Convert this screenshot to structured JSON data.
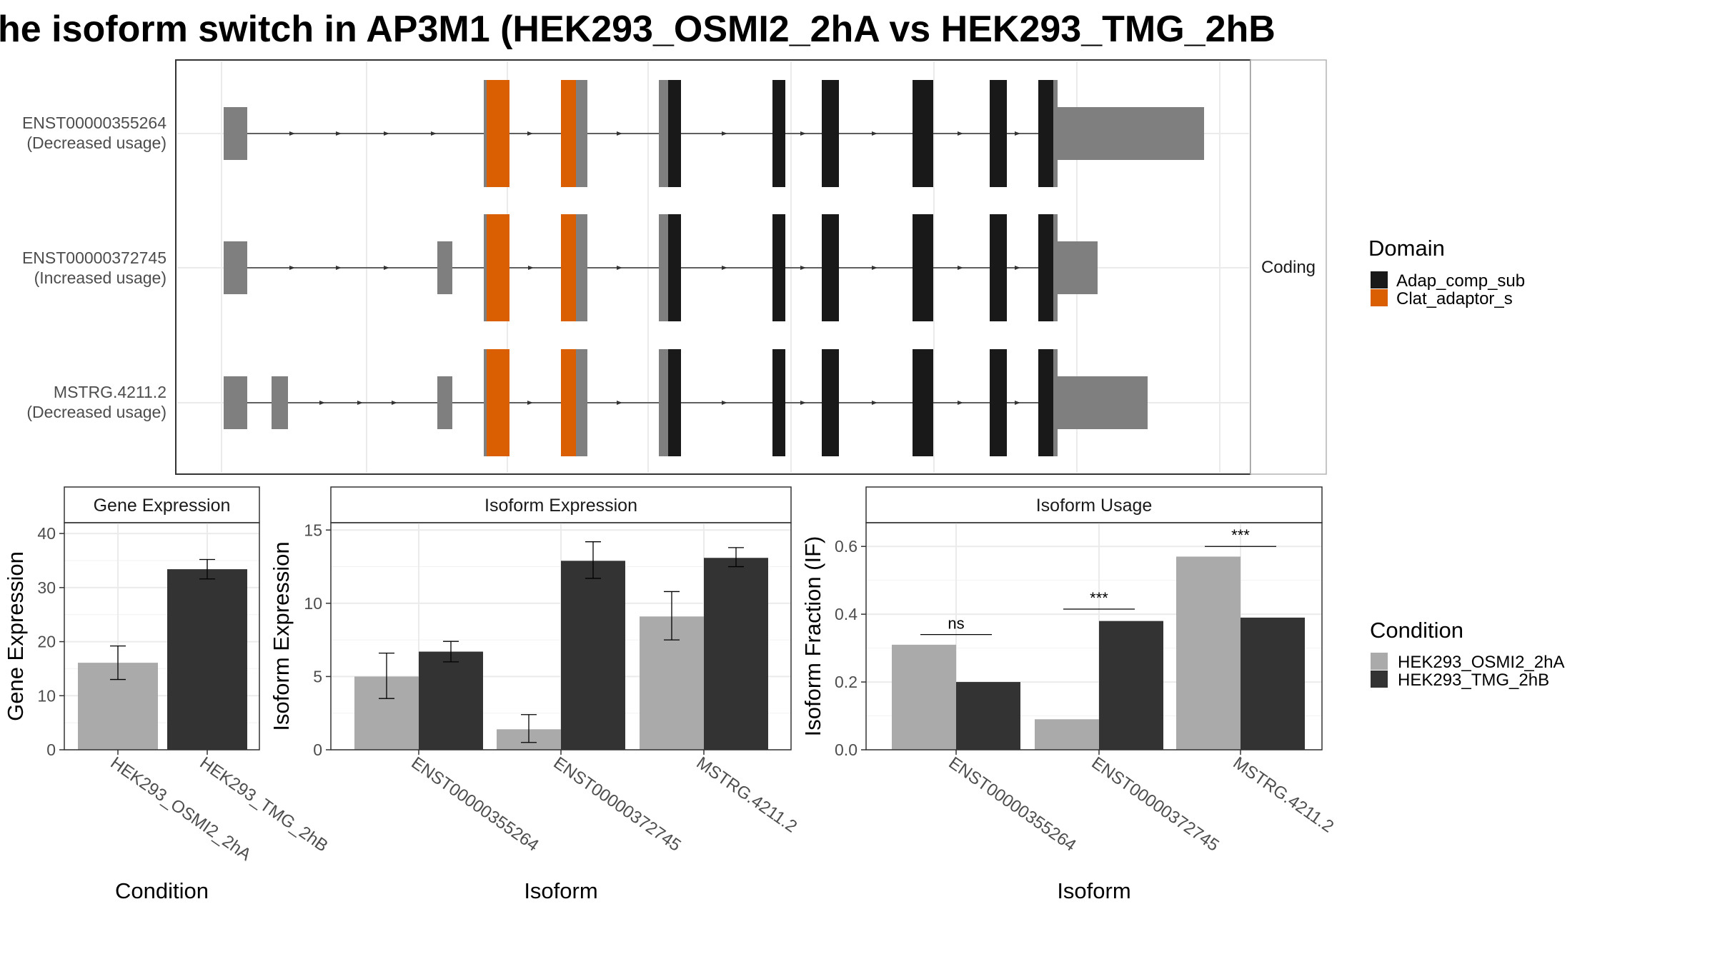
{
  "title": "he isoform switch in AP3M1 (HEK293_OSMI2_2hA vs HEK293_TMG_2hB",
  "colors": {
    "domain_adap": "#191919",
    "domain_clat": "#D95F02",
    "noncoding_exon": "#7F7F7F",
    "condition_a": "#AAAAAA",
    "condition_b": "#333333"
  },
  "structure": {
    "strip_label": "Coding",
    "isoforms": [
      {
        "id": "ENST00000355264",
        "status": "(Decreased usage)"
      },
      {
        "id": "ENST00000372745",
        "status": "(Increased usage)"
      },
      {
        "id": "MSTRG.4211.2",
        "status": "(Decreased usage)"
      }
    ],
    "legend": {
      "title": "Domain",
      "entries": [
        {
          "label": "Adap_comp_sub",
          "color": "#191919"
        },
        {
          "label": "Clat_adaptor_s",
          "color": "#D95F02"
        }
      ]
    }
  },
  "condition_legend": {
    "title": "Condition",
    "entries": [
      {
        "label": "HEK293_OSMI2_2hA",
        "color": "#AAAAAA"
      },
      {
        "label": "HEK293_TMG_2hB",
        "color": "#333333"
      }
    ]
  },
  "chart_data": [
    {
      "type": "bar",
      "title": "Gene Expression",
      "xlabel": "Condition",
      "ylabel": "Gene Expression",
      "ylim": [
        0,
        42
      ],
      "yticks": [
        0,
        10,
        20,
        30,
        40
      ],
      "categories": [
        "HEK293_OSMI2_2hA",
        "HEK293_TMG_2hB"
      ],
      "values": [
        16.1,
        33.4
      ],
      "error_low": [
        13.0,
        31.6
      ],
      "error_high": [
        19.2,
        35.2
      ],
      "colors": [
        "#AAAAAA",
        "#333333"
      ],
      "grid": true
    },
    {
      "type": "bar",
      "title": "Isoform Expression",
      "xlabel": "Isoform",
      "ylabel": "Isoform Expression",
      "ylim": [
        0,
        15.5
      ],
      "yticks": [
        0,
        5,
        10,
        15
      ],
      "categories": [
        "ENST00000355264",
        "ENST00000372745",
        "MSTRG.4211.2"
      ],
      "series": [
        {
          "name": "HEK293_OSMI2_2hA",
          "values": [
            5.0,
            1.4,
            9.1
          ],
          "error_low": [
            3.5,
            0.5,
            7.5
          ],
          "error_high": [
            6.6,
            2.4,
            10.8
          ]
        },
        {
          "name": "HEK293_TMG_2hB",
          "values": [
            6.7,
            12.9,
            13.1
          ],
          "error_low": [
            6.0,
            11.7,
            12.5
          ],
          "error_high": [
            7.4,
            14.2,
            13.8
          ]
        }
      ],
      "grid": true
    },
    {
      "type": "bar",
      "title": "Isoform Usage",
      "xlabel": "Isoform",
      "ylabel": "Isoform Fraction (IF)",
      "ylim": [
        0,
        0.67
      ],
      "yticks": [
        0.0,
        0.2,
        0.4,
        0.6
      ],
      "categories": [
        "ENST00000355264",
        "ENST00000372745",
        "MSTRG.4211.2"
      ],
      "series": [
        {
          "name": "HEK293_OSMI2_2hA",
          "values": [
            0.31,
            0.09,
            0.57
          ]
        },
        {
          "name": "HEK293_TMG_2hB",
          "values": [
            0.2,
            0.38,
            0.39
          ]
        }
      ],
      "annotations": [
        {
          "label": "ns",
          "y": 0.34
        },
        {
          "label": "***",
          "y": 0.415
        },
        {
          "label": "***",
          "y": 0.6
        }
      ],
      "grid": true
    }
  ]
}
